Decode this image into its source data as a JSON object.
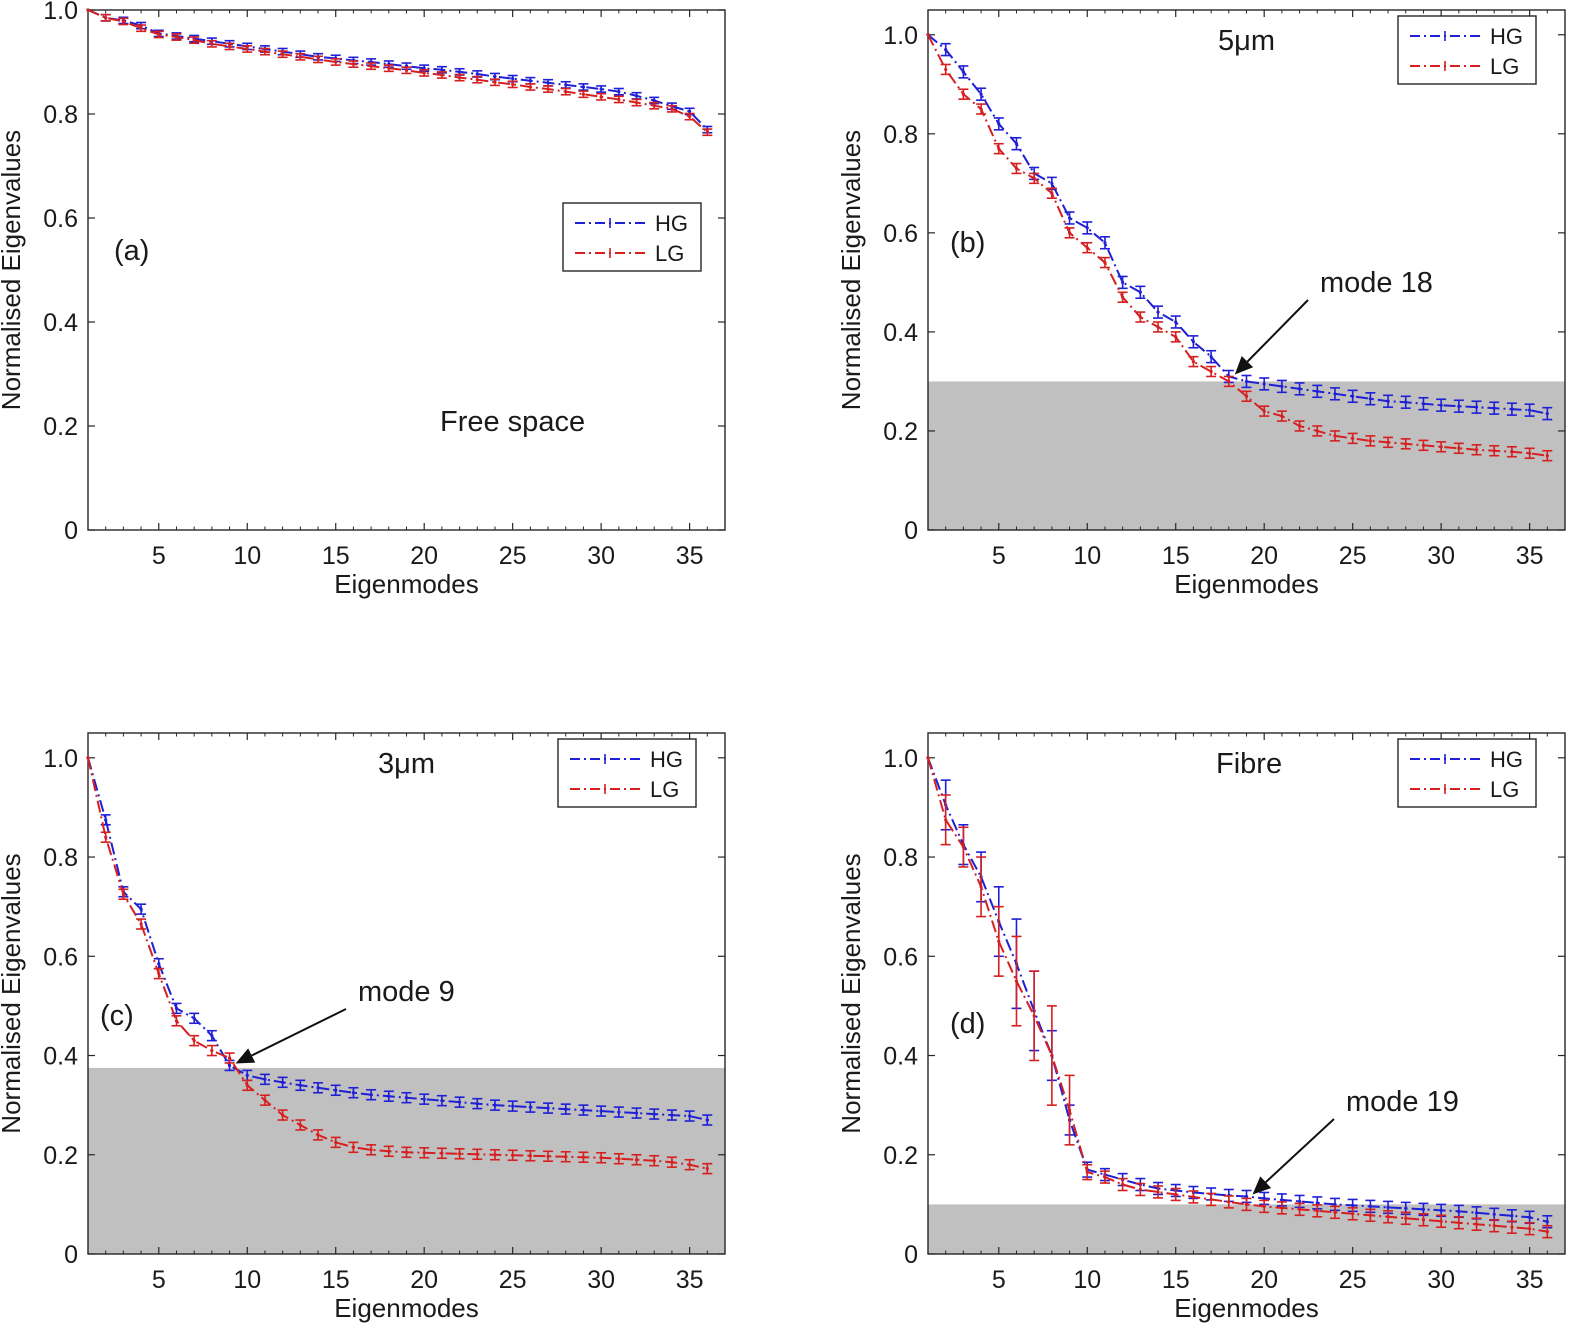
{
  "chart_data": [
    {
      "id": "a",
      "type": "line",
      "xlabel": "Eigenmodes",
      "ylabel": "Normalised Eigenvalues",
      "xlim": [
        1,
        37
      ],
      "ylim": [
        0,
        1.0
      ],
      "xticks": [
        "5",
        "10",
        "15",
        "20",
        "25",
        "30",
        "35"
      ],
      "yticks": [
        "0",
        "0.2",
        "0.4",
        "0.6",
        "0.8",
        "1.0"
      ],
      "panel_label": "(a)",
      "annotation": "Free space",
      "legend": [
        "HG",
        "LG"
      ],
      "legend_position": "center-right",
      "threshold": null,
      "series": [
        {
          "name": "HG",
          "color": "#1f1fd6",
          "err": 0.006,
          "values": [
            1.0,
            0.985,
            0.98,
            0.97,
            0.955,
            0.95,
            0.945,
            0.94,
            0.935,
            0.93,
            0.925,
            0.92,
            0.915,
            0.91,
            0.907,
            0.903,
            0.9,
            0.896,
            0.892,
            0.888,
            0.885,
            0.881,
            0.877,
            0.872,
            0.868,
            0.864,
            0.86,
            0.856,
            0.852,
            0.848,
            0.843,
            0.835,
            0.826,
            0.815,
            0.805,
            0.77
          ]
        },
        {
          "name": "LG",
          "color": "#d62020",
          "err": 0.006,
          "values": [
            1.0,
            0.985,
            0.978,
            0.965,
            0.953,
            0.948,
            0.942,
            0.935,
            0.93,
            0.925,
            0.92,
            0.915,
            0.91,
            0.905,
            0.9,
            0.896,
            0.892,
            0.888,
            0.884,
            0.879,
            0.875,
            0.87,
            0.866,
            0.861,
            0.857,
            0.852,
            0.848,
            0.843,
            0.838,
            0.833,
            0.828,
            0.822,
            0.816,
            0.81,
            0.795,
            0.765
          ]
        }
      ]
    },
    {
      "id": "b",
      "type": "line",
      "xlabel": "Eigenmodes",
      "ylabel": "Normalised Eigenvalues",
      "xlim": [
        1,
        37
      ],
      "ylim": [
        0,
        1.05
      ],
      "xticks": [
        "5",
        "10",
        "15",
        "20",
        "25",
        "30",
        "35"
      ],
      "yticks": [
        "0",
        "0.2",
        "0.4",
        "0.6",
        "0.8",
        "1.0"
      ],
      "panel_label": "(b)",
      "annotation": "5μm",
      "legend": [
        "HG",
        "LG"
      ],
      "legend_position": "top-right",
      "threshold": 0.3,
      "arrow_label": "mode 18",
      "arrow_mode": 18,
      "series": [
        {
          "name": "HG",
          "color": "#1f1fd6",
          "err": 0.012,
          "values": [
            1.0,
            0.97,
            0.925,
            0.88,
            0.82,
            0.78,
            0.72,
            0.7,
            0.63,
            0.61,
            0.58,
            0.5,
            0.48,
            0.44,
            0.42,
            0.38,
            0.35,
            0.31,
            0.3,
            0.295,
            0.29,
            0.285,
            0.28,
            0.275,
            0.27,
            0.265,
            0.26,
            0.258,
            0.255,
            0.252,
            0.25,
            0.248,
            0.246,
            0.244,
            0.242,
            0.235
          ]
        },
        {
          "name": "LG",
          "color": "#d62020",
          "err": 0.01,
          "values": [
            1.0,
            0.93,
            0.88,
            0.85,
            0.77,
            0.73,
            0.71,
            0.68,
            0.6,
            0.57,
            0.54,
            0.47,
            0.43,
            0.41,
            0.39,
            0.34,
            0.32,
            0.3,
            0.27,
            0.24,
            0.23,
            0.21,
            0.2,
            0.19,
            0.185,
            0.18,
            0.177,
            0.174,
            0.171,
            0.168,
            0.165,
            0.162,
            0.16,
            0.158,
            0.155,
            0.15
          ]
        }
      ]
    },
    {
      "id": "c",
      "type": "line",
      "xlabel": "Eigenmodes",
      "ylabel": "Normalised Eigenvalues",
      "xlim": [
        1,
        37
      ],
      "ylim": [
        0,
        1.05
      ],
      "xticks": [
        "5",
        "10",
        "15",
        "20",
        "25",
        "30",
        "35"
      ],
      "yticks": [
        "0",
        "0.2",
        "0.4",
        "0.6",
        "0.8",
        "1.0"
      ],
      "panel_label": "(c)",
      "annotation": "3μm",
      "legend": [
        "HG",
        "LG"
      ],
      "legend_position": "top-right",
      "threshold": 0.375,
      "arrow_label": "mode 9",
      "arrow_mode": 9,
      "series": [
        {
          "name": "HG",
          "color": "#1f1fd6",
          "err": 0.01,
          "values": [
            1.0,
            0.875,
            0.73,
            0.695,
            0.585,
            0.495,
            0.475,
            0.44,
            0.38,
            0.36,
            0.352,
            0.346,
            0.34,
            0.335,
            0.33,
            0.325,
            0.321,
            0.318,
            0.315,
            0.312,
            0.309,
            0.306,
            0.303,
            0.3,
            0.298,
            0.296,
            0.294,
            0.292,
            0.29,
            0.288,
            0.286,
            0.284,
            0.282,
            0.28,
            0.278,
            0.27
          ]
        },
        {
          "name": "LG",
          "color": "#d62020",
          "err": 0.01,
          "values": [
            1.0,
            0.84,
            0.725,
            0.665,
            0.565,
            0.47,
            0.43,
            0.41,
            0.395,
            0.34,
            0.31,
            0.28,
            0.26,
            0.24,
            0.225,
            0.215,
            0.21,
            0.207,
            0.205,
            0.204,
            0.203,
            0.202,
            0.201,
            0.2,
            0.199,
            0.198,
            0.197,
            0.196,
            0.195,
            0.194,
            0.192,
            0.19,
            0.188,
            0.185,
            0.18,
            0.172
          ]
        }
      ]
    },
    {
      "id": "d",
      "type": "line",
      "xlabel": "Eigenmodes",
      "ylabel": "Normalised Eigenvalues",
      "xlim": [
        1,
        37
      ],
      "ylim": [
        0,
        1.05
      ],
      "xticks": [
        "5",
        "10",
        "15",
        "20",
        "25",
        "30",
        "35"
      ],
      "yticks": [
        "0",
        "0.2",
        "0.4",
        "0.6",
        "0.8",
        "1.0"
      ],
      "panel_label": "(d)",
      "annotation": "Fibre",
      "legend": [
        "HG",
        "LG"
      ],
      "legend_position": "top-right",
      "threshold": 0.1,
      "arrow_label": "mode 19",
      "arrow_mode": 19,
      "series": [
        {
          "name": "HG",
          "color": "#1f1fd6",
          "err": 0.012,
          "errs": [
            0,
            0.05,
            0.04,
            0.05,
            0.07,
            0.09,
            0.08,
            0.05,
            0.03,
            0.015
          ],
          "values": [
            1.0,
            0.905,
            0.825,
            0.76,
            0.67,
            0.585,
            0.49,
            0.4,
            0.27,
            0.17,
            0.16,
            0.15,
            0.14,
            0.132,
            0.128,
            0.124,
            0.121,
            0.118,
            0.116,
            0.112,
            0.109,
            0.106,
            0.103,
            0.1,
            0.098,
            0.096,
            0.094,
            0.092,
            0.09,
            0.088,
            0.086,
            0.083,
            0.08,
            0.077,
            0.074,
            0.065
          ]
        },
        {
          "name": "LG",
          "color": "#d62020",
          "err": 0.012,
          "errs": [
            0,
            0.05,
            0.04,
            0.06,
            0.07,
            0.09,
            0.09,
            0.1,
            0.07,
            0.015
          ],
          "values": [
            1.0,
            0.875,
            0.82,
            0.74,
            0.63,
            0.55,
            0.48,
            0.4,
            0.29,
            0.165,
            0.155,
            0.14,
            0.13,
            0.125,
            0.12,
            0.115,
            0.11,
            0.105,
            0.1,
            0.096,
            0.093,
            0.09,
            0.087,
            0.084,
            0.081,
            0.078,
            0.075,
            0.072,
            0.069,
            0.066,
            0.063,
            0.06,
            0.057,
            0.054,
            0.051,
            0.045
          ]
        }
      ]
    }
  ]
}
